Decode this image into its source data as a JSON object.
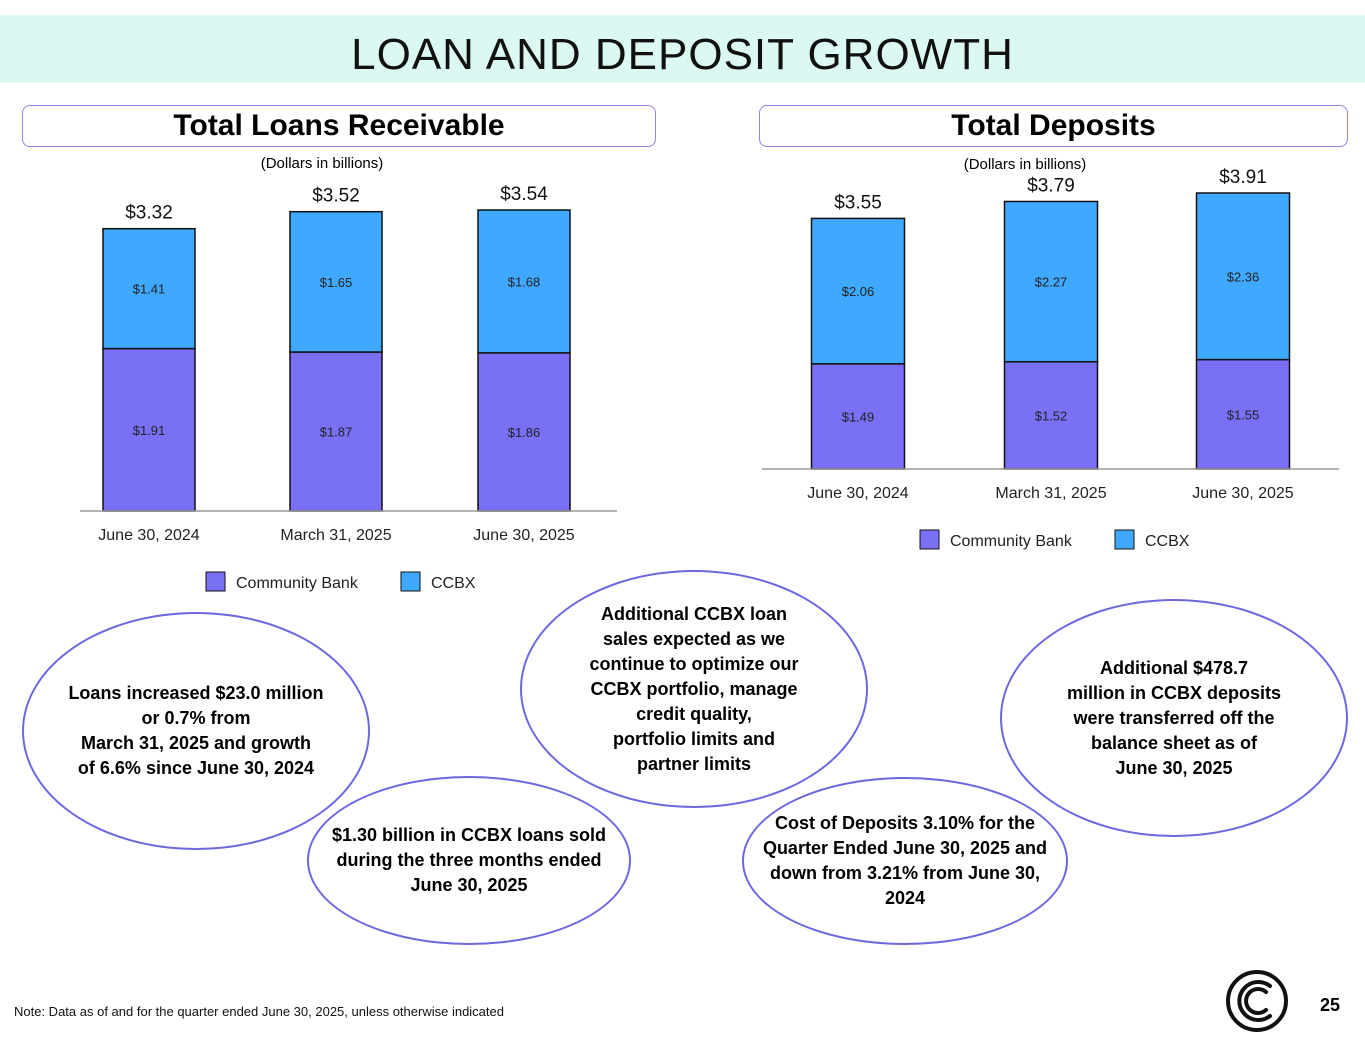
{
  "title": "LOAN AND DEPOSIT GROWTH",
  "colors": {
    "community_bank": "#7970f5",
    "ccbx": "#3fa9ff",
    "accent": "#6d67e0",
    "banner": "#dcf8f2"
  },
  "loans_panel": {
    "header": "Total Loans Receivable",
    "subtitle": "(Dollars in billions)"
  },
  "deposits_panel": {
    "header": "Total Deposits",
    "subtitle": "(Dollars in billions)"
  },
  "chart_data": [
    {
      "type": "bar",
      "stacked": true,
      "title": "Total Loans Receivable",
      "subtitle": "(Dollars in billions)",
      "categories": [
        "June 30, 2024",
        "March 31, 2025",
        "June 30, 2025"
      ],
      "series": [
        {
          "name": "Community Bank",
          "values": [
            1.91,
            1.87,
            1.86
          ],
          "labels": [
            "$1.91",
            "$1.87",
            "$1.86"
          ]
        },
        {
          "name": "CCBX",
          "values": [
            1.41,
            1.65,
            1.68
          ],
          "labels": [
            "$1.41",
            "$1.65",
            "$1.68"
          ]
        }
      ],
      "totals": [
        3.32,
        3.52,
        3.54
      ],
      "total_labels": [
        "$3.32",
        "$3.52",
        "$3.54"
      ],
      "ylim": [
        0,
        3.54
      ],
      "legend": "bottom",
      "grid": false
    },
    {
      "type": "bar",
      "stacked": true,
      "title": "Total Deposits",
      "subtitle": "(Dollars in billions)",
      "categories": [
        "June 30, 2024",
        "March 31, 2025",
        "June 30, 2025"
      ],
      "series": [
        {
          "name": "Community Bank",
          "values": [
            1.49,
            1.52,
            1.55
          ],
          "labels": [
            "$1.49",
            "$1.52",
            "$1.55"
          ]
        },
        {
          "name": "CCBX",
          "values": [
            2.06,
            2.27,
            2.36
          ],
          "labels": [
            "$2.06",
            "$2.27",
            "$2.36"
          ]
        }
      ],
      "totals": [
        3.55,
        3.79,
        3.91
      ],
      "total_labels": [
        "$3.55",
        "$3.79",
        "$3.91"
      ],
      "ylim": [
        0,
        3.91
      ],
      "legend": "bottom",
      "grid": false
    }
  ],
  "bubbles": {
    "loans_growth": "Loans increased $23.0 million\nor 0.7% from\nMarch 31, 2025 and growth\nof 6.6% since June 30, 2024",
    "loans_sold": "$1.30 billion in CCBX loans sold\nduring the three months ended\nJune 30, 2025",
    "loan_sales_expected": "Additional CCBX loan\nsales expected as we\ncontinue to optimize our\nCCBX portfolio, manage\ncredit quality,\nportfolio limits and\npartner limits",
    "cost_of_deposits": "Cost of Deposits 3.10% for the\nQuarter Ended June 30, 2025 and\ndown from 3.21% from June 30,\n2024",
    "deposits_transferred": "Additional $478.7\nmillion in CCBX deposits\nwere transferred off the\nbalance sheet  as of\nJune 30, 2025"
  },
  "footer": {
    "note": "Note:  Data as of and for the quarter ended June 30, 2025, unless otherwise indicated",
    "page_number": "25",
    "logo_icon": "company-logo-icon"
  }
}
